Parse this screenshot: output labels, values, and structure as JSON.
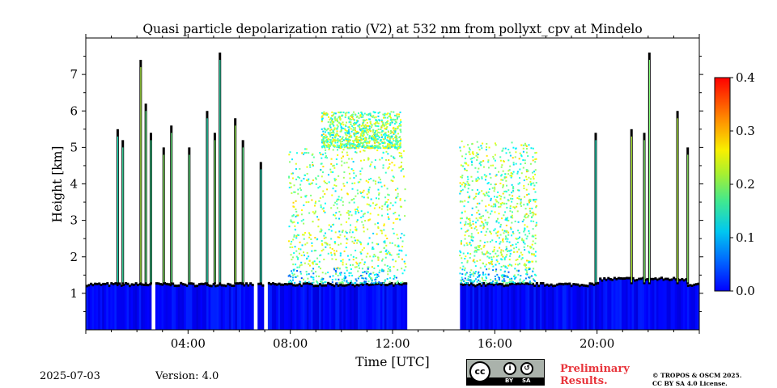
{
  "chart_data": {
    "type": "heatmap",
    "title": "Quasi particle depolarization ratio (V2) at 532 nm from pollyxt_cpv at Mindelo",
    "xlabel": "Time [UTC]",
    "ylabel": "Height [km]",
    "xlim": [
      0,
      24
    ],
    "ylim": [
      0,
      8
    ],
    "x_tick_labels": [
      "04:00",
      "08:00",
      "12:00",
      "16:00",
      "20:00"
    ],
    "x_tick_values": [
      4,
      8,
      12,
      16,
      20
    ],
    "y_tick_labels": [
      "1",
      "2",
      "3",
      "4",
      "5",
      "6",
      "7"
    ],
    "y_tick_values": [
      1,
      2,
      3,
      4,
      5,
      6,
      7
    ],
    "colorbar": {
      "min": 0.0,
      "max": 0.4,
      "ticks": [
        0.0,
        0.1,
        0.2,
        0.3,
        0.4
      ],
      "tick_labels": [
        "0.0",
        "0.1",
        "0.2",
        "0.3",
        "0.4"
      ],
      "colormap": "jet",
      "colors": [
        "#0000ff",
        "#0080ff",
        "#00e0e0",
        "#40f080",
        "#c0ff20",
        "#ffe000",
        "#ff8000",
        "#ff0000"
      ]
    },
    "gaps_hours": [
      [
        2.55,
        2.72
      ],
      [
        6.5,
        6.65
      ],
      [
        6.95,
        7.05
      ],
      [
        12.55,
        14.6
      ]
    ],
    "boundary_layer_top_km": 1.25,
    "dust_layer_value": 0.2,
    "boundary_layer_value": 0.05
  },
  "footer": {
    "date": "2025-07-03",
    "version": "Version: 4.0",
    "license_badge": {
      "cc_label": "cc",
      "by_label": "BY",
      "sa_label": "SA",
      "icon_name": "creative-commons-by-sa-icon"
    },
    "preliminary_line1": "Preliminary",
    "preliminary_line2": "Results.",
    "copyright_line1": "© TROPOS & OSCM 2025.",
    "copyright_line2": "CC BY SA 4.0 License."
  }
}
